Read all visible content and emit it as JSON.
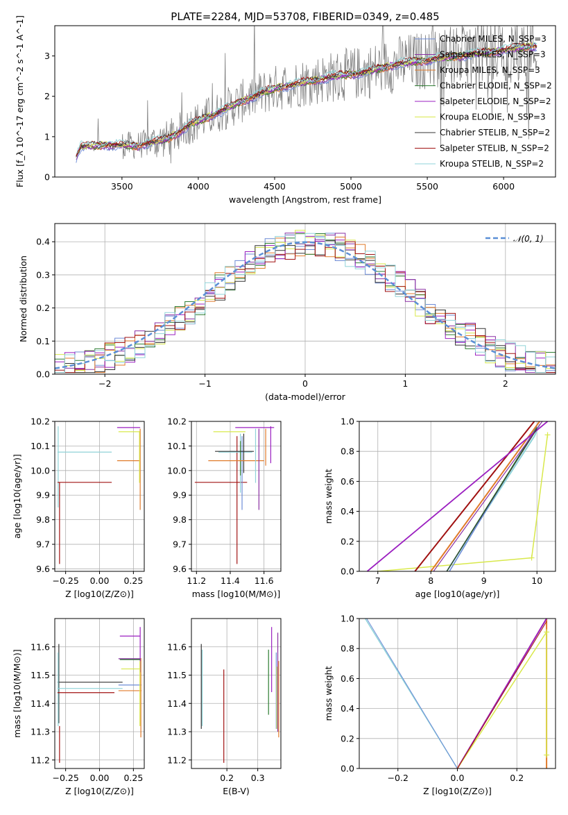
{
  "figure": {
    "title": "PLATE=2284, MJD=53708, FIBERID=0349, z=0.485"
  },
  "chart_data": [
    {
      "id": "spectrum",
      "type": "line",
      "xlabel": "wavelength [Angstrom, rest frame]",
      "ylabel": "Flux [f_λ 10^-17 erg cm^-2 s^-1 A^-1]",
      "xlim": [
        3060,
        6340
      ],
      "ylim": [
        0,
        3.75
      ],
      "xticks": [
        "3500",
        "4000",
        "4500",
        "5000",
        "5500",
        "6000"
      ],
      "yticks": [
        "0",
        "1",
        "2",
        "3"
      ],
      "grid": false,
      "legend_position": "top-right",
      "series": [
        {
          "name": "Chabrier MILES, N_SSP=3",
          "color": "#6d8bd6"
        },
        {
          "name": "Salpeter MILES, N_SSP=3",
          "color": "#8a2fa3"
        },
        {
          "name": "Kroupa MILES, N_SSP=3",
          "color": "#e07a2a"
        },
        {
          "name": "Chabrier ELODIE, N_SSP=2",
          "color": "#2e7d32"
        },
        {
          "name": "Salpeter ELODIE, N_SSP=2",
          "color": "#9b1fc0"
        },
        {
          "name": "Kroupa ELODIE, N_SSP=3",
          "color": "#d8e84a"
        },
        {
          "name": "Chabrier STELIB, N_SSP=2",
          "color": "#333333"
        },
        {
          "name": "Salpeter STELIB, N_SSP=2",
          "color": "#a01010"
        },
        {
          "name": "Kroupa STELIB, N_SSP=2",
          "color": "#8fd3d8"
        }
      ],
      "data_color": "#808080",
      "model_shape": {
        "x": [
          3200,
          3230,
          3400,
          3600,
          3800,
          3950,
          4100,
          4300,
          4500,
          4700,
          4900,
          5100,
          5300,
          5500,
          5700,
          5900,
          6100,
          6200
        ],
        "y": [
          0.5,
          0.75,
          0.8,
          0.78,
          0.95,
          1.3,
          1.55,
          1.9,
          2.2,
          2.35,
          2.5,
          2.6,
          2.8,
          2.9,
          3.0,
          3.1,
          3.2,
          3.25
        ]
      }
    },
    {
      "id": "residuals",
      "type": "line",
      "xlabel": "(data-model)/error",
      "ylabel": "Normed distribution",
      "xlim": [
        -2.5,
        2.5
      ],
      "ylim": [
        0,
        0.455
      ],
      "xticks": [
        "−2",
        "−1",
        "0",
        "1",
        "2"
      ],
      "yticks": [
        "0.0",
        "0.1",
        "0.2",
        "0.3",
        "0.4"
      ],
      "grid": true,
      "legend_position": "top-right",
      "reference_label": "𝒩(0, 1)",
      "reference_color": "#5b8fd6"
    },
    {
      "id": "age-vs-Z",
      "type": "scatter",
      "xlabel": "Z [log10(Z/Z⊙)]",
      "ylabel": "age  [log10(age/yr)]",
      "xlim": [
        -0.33,
        0.33
      ],
      "ylim": [
        9.59,
        10.2
      ],
      "xticks": [
        "−0.25",
        "0.00",
        "0.25"
      ],
      "yticks": [
        "9.6",
        "9.7",
        "9.8",
        "9.9",
        "10.0",
        "10.1",
        "10.2"
      ],
      "grid": true
    },
    {
      "id": "age-vs-mass",
      "type": "scatter",
      "xlabel": "mass [log10(M/M⊙)]",
      "xlim": [
        11.17,
        11.7
      ],
      "ylim": [
        9.59,
        10.2
      ],
      "xticks": [
        "11.2",
        "11.4",
        "11.6"
      ],
      "yticks": [
        "9.6",
        "9.7",
        "9.8",
        "9.9",
        "10.0",
        "10.1",
        "10.2"
      ],
      "grid": true
    },
    {
      "id": "mass-weight-vs-age",
      "type": "line",
      "xlabel": "age  [log10(age/yr)]",
      "ylabel": "mass weight",
      "xlim": [
        6.65,
        10.35
      ],
      "ylim": [
        0,
        1
      ],
      "xticks": [
        "7",
        "8",
        "9",
        "10"
      ],
      "yticks": [
        "0.0",
        "0.2",
        "0.4",
        "0.6",
        "0.8",
        "1.0"
      ],
      "grid": true
    },
    {
      "id": "mass-vs-Z",
      "type": "scatter",
      "xlabel": "Z [log10(Z/Z⊙)]",
      "ylabel": "mass [log10(M/M⊙)]",
      "xlim": [
        -0.33,
        0.33
      ],
      "ylim": [
        11.17,
        11.7
      ],
      "xticks": [
        "−0.25",
        "0.00",
        "0.25"
      ],
      "yticks": [
        "11.2",
        "11.3",
        "11.4",
        "11.5",
        "11.6"
      ],
      "grid": true
    },
    {
      "id": "mass-vs-EBV",
      "type": "scatter",
      "xlabel": "E(B-V)",
      "xlim": [
        0.085,
        0.375
      ],
      "ylim": [
        11.17,
        11.7
      ],
      "xticks": [
        "0.2",
        "0.3"
      ],
      "yticks": [
        "11.2",
        "11.3",
        "11.4",
        "11.5",
        "11.6"
      ],
      "grid": true
    },
    {
      "id": "mass-weight-vs-Z",
      "type": "line",
      "xlabel": "Z [log10(Z/Z⊙)]",
      "ylabel": "mass weight",
      "xlim": [
        -0.33,
        0.33
      ],
      "ylim": [
        0,
        1
      ],
      "xticks": [
        "−0.2",
        "0.0",
        "0.2"
      ],
      "yticks": [
        "0.0",
        "0.2",
        "0.4",
        "0.6",
        "0.8",
        "1.0"
      ],
      "grid": true
    }
  ]
}
